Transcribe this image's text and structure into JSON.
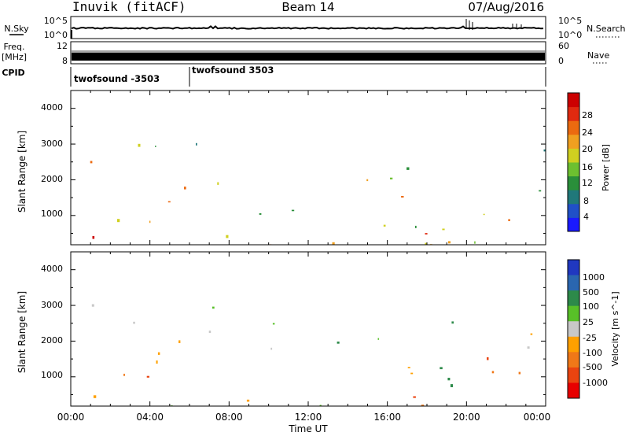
{
  "header": {
    "station": "Inuvik (fitACF)",
    "beam": "Beam 14",
    "date": "07/Aug/2016"
  },
  "strip_panels": {
    "nsky_label": "N.Sky",
    "nsky_ticks": [
      "10^5",
      "10^0"
    ],
    "nsearch_label": "N.Search",
    "nsearch_ticks": [
      "10^5",
      "10^0"
    ],
    "freq_label_1": "Freq.",
    "freq_label_2": "[MHz]",
    "freq_ticks": [
      "12",
      "8"
    ],
    "nave_label": "Nave",
    "nave_ticks": [
      "60",
      "0"
    ],
    "cpid_label": "CPID",
    "cpid_segments": [
      {
        "label": "twofsound -3503",
        "start_hour": 0
      },
      {
        "label": "twofsound 3503",
        "start_hour": 6
      }
    ]
  },
  "x_axis": {
    "title": "Time UT",
    "ticks": [
      "00:00",
      "04:00",
      "08:00",
      "12:00",
      "16:00",
      "20:00",
      "00:00"
    ]
  },
  "chart_data": [
    {
      "type": "heatmap",
      "panel": "power",
      "xlabel": "Time UT",
      "ylabel": "Slant Range [km]",
      "xlim_hours": [
        0,
        24
      ],
      "ylim_km": [
        180,
        4500
      ],
      "y_ticks": [
        "1000",
        "2000",
        "3000",
        "4000"
      ],
      "colorbar_label": "Power [dB]",
      "colorbar_ticks": [
        "4",
        "8",
        "12",
        "16",
        "20",
        "24",
        "28"
      ],
      "colorbar_colors": [
        "#1a1aff",
        "#2050c8",
        "#20787a",
        "#2a8f3a",
        "#6dc030",
        "#d0d020",
        "#f0a020",
        "#ec6a10",
        "#e02a10",
        "#cc0000"
      ]
    },
    {
      "type": "heatmap",
      "panel": "velocity",
      "xlabel": "Time UT",
      "ylabel": "Slant Range [km]",
      "xlim_hours": [
        0,
        24
      ],
      "ylim_km": [
        180,
        4500
      ],
      "y_ticks": [
        "1000",
        "2000",
        "3000",
        "4000"
      ],
      "colorbar_label": "Velocity [m s^-1]",
      "colorbar_ticks": [
        "1000",
        "500",
        "100",
        "25",
        "-25",
        "-100",
        "-500",
        "-1000"
      ],
      "colorbar_colors": [
        "#2038c0",
        "#2a66b0",
        "#2d8a4a",
        "#58c028",
        "#c8c8c8",
        "#ffa000",
        "#f07818",
        "#ea4410",
        "#e80000"
      ]
    }
  ]
}
